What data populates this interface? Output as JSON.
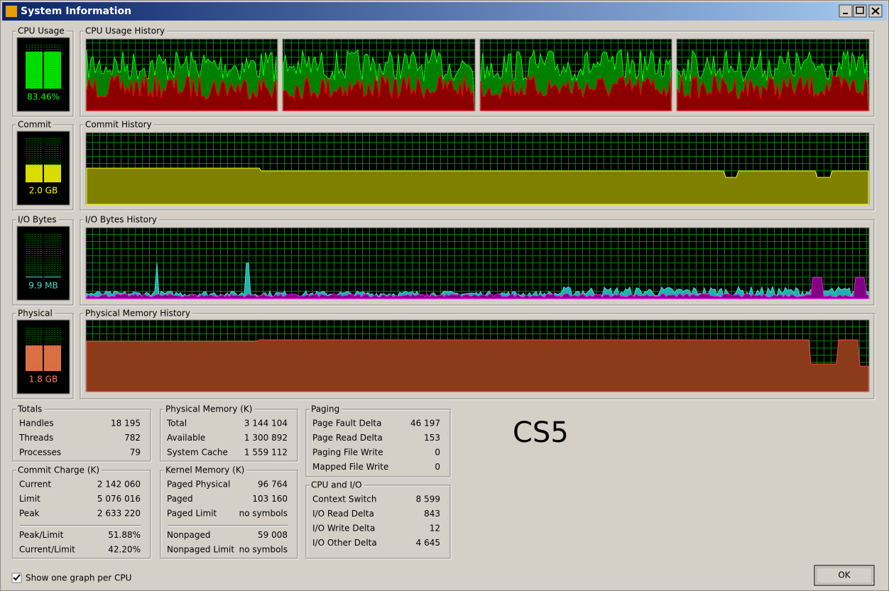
{
  "window": {
    "title": "System Information"
  },
  "meters": [
    {
      "label": "CPU Usage",
      "value": "83.46%"
    },
    {
      "label": "Commit",
      "value": "2.0 GB"
    },
    {
      "label": "I/O Bytes",
      "value": "9.9 MB"
    },
    {
      "label": "Physical",
      "value": "1.8 GB"
    }
  ],
  "histories": [
    "CPU Usage History",
    "Commit History",
    "I/O Bytes History",
    "Physical Memory History"
  ],
  "groups": [
    {
      "title": "Totals",
      "sections": [
        [
          [
            "Handles",
            "18 195"
          ],
          [
            "Threads",
            "782"
          ],
          [
            "Processes",
            "79"
          ]
        ]
      ]
    },
    {
      "title": "Commit Charge (K)",
      "sections": [
        [
          [
            "Current",
            "2 142 060"
          ],
          [
            "Limit",
            "5 076 016"
          ],
          [
            "Peak",
            "2 633 220"
          ]
        ],
        [
          [
            "Peak/Limit",
            "51.88%"
          ],
          [
            "Current/Limit",
            "42.20%"
          ]
        ]
      ]
    },
    {
      "title": "Physical Memory (K)",
      "sections": [
        [
          [
            "Total",
            "3 144 104"
          ],
          [
            "Available",
            "1 300 892"
          ],
          [
            "System Cache",
            "1 559 112"
          ]
        ]
      ]
    },
    {
      "title": "Kernel Memory (K)",
      "sections": [
        [
          [
            "Paged Physical",
            "96 764"
          ],
          [
            "Paged",
            "103 160"
          ],
          [
            "Paged Limit",
            "no symbols"
          ]
        ],
        [
          [
            "Nonpaged",
            "59 008"
          ],
          [
            "Nonpaged Limit",
            "no symbols"
          ]
        ]
      ]
    },
    {
      "title": "Paging",
      "sections": [
        [
          [
            "Page Fault Delta",
            "46 197"
          ],
          [
            "Page Read Delta",
            "153"
          ],
          [
            "Paging File Write",
            "0"
          ],
          [
            "Mapped File Write",
            "0"
          ]
        ]
      ]
    },
    {
      "title": "CPU and I/O",
      "sections": [
        [
          [
            "Context Switch",
            "8 599"
          ],
          [
            "I/O Read Delta",
            "843"
          ],
          [
            "I/O Write Delta",
            "12"
          ],
          [
            "I/O Other Delta",
            "4 645"
          ]
        ]
      ]
    }
  ],
  "checkbox": "Show one graph per CPU",
  "ok": "OK",
  "watermark": "CS5"
}
